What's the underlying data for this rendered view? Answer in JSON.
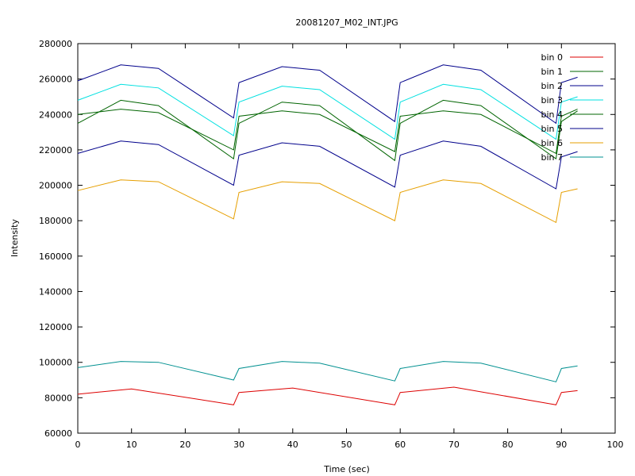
{
  "chart_data": {
    "type": "line",
    "title": "20081207_M02_INT.JPG",
    "xlabel": "Time (sec)",
    "ylabel": "Intensity",
    "xlim": [
      0,
      100
    ],
    "ylim": [
      60000,
      280000
    ],
    "xticks": [
      0,
      10,
      20,
      30,
      40,
      50,
      60,
      70,
      80,
      90,
      100
    ],
    "yticks": [
      60000,
      80000,
      100000,
      120000,
      140000,
      160000,
      180000,
      200000,
      220000,
      240000,
      260000,
      280000
    ],
    "grid": false,
    "legend_position": "top-right",
    "series": [
      {
        "name": "bin 0",
        "color": "#dd0000",
        "x": [
          0,
          10,
          29,
          30,
          40,
          59,
          60,
          70,
          89,
          90,
          93
        ],
        "y": [
          82000,
          85000,
          76000,
          83000,
          85500,
          76000,
          83000,
          86000,
          76000,
          83000,
          84000
        ]
      },
      {
        "name": "bin 1",
        "color": "#006400",
        "x": [
          0,
          8,
          15,
          29,
          30,
          38,
          45,
          59,
          60,
          68,
          75,
          89,
          90,
          93
        ],
        "y": [
          235000,
          248000,
          245000,
          215000,
          235000,
          247000,
          245000,
          214000,
          235000,
          248000,
          245000,
          215000,
          236000,
          242000
        ]
      },
      {
        "name": "bin 2",
        "color": "#00008b",
        "x": [
          0,
          8,
          15,
          29,
          30,
          38,
          45,
          59,
          60,
          68,
          75,
          89,
          90,
          93
        ],
        "y": [
          259000,
          268000,
          266000,
          238000,
          258000,
          267000,
          265000,
          236000,
          258000,
          268000,
          265000,
          235000,
          258000,
          261000
        ]
      },
      {
        "name": "bin 3",
        "color": "#00e0e0",
        "x": [
          0,
          8,
          15,
          29,
          30,
          38,
          45,
          59,
          60,
          68,
          75,
          89,
          90,
          93
        ],
        "y": [
          248000,
          257000,
          255000,
          228000,
          247000,
          256000,
          254000,
          226000,
          247000,
          257000,
          254000,
          226000,
          247000,
          250000
        ]
      },
      {
        "name": "bin 4",
        "color": "#006400",
        "x": [
          0,
          8,
          15,
          29,
          30,
          38,
          45,
          59,
          60,
          68,
          75,
          89,
          90,
          93
        ],
        "y": [
          240000,
          243000,
          241000,
          220000,
          239000,
          242000,
          240000,
          219000,
          239000,
          242000,
          240000,
          218000,
          239000,
          243000
        ]
      },
      {
        "name": "bin 5",
        "color": "#00008b",
        "x": [
          0,
          8,
          15,
          29,
          30,
          38,
          45,
          59,
          60,
          68,
          75,
          89,
          90,
          93
        ],
        "y": [
          218000,
          225000,
          223000,
          200000,
          217000,
          224000,
          222000,
          199000,
          217000,
          225000,
          222000,
          198000,
          216000,
          219000
        ]
      },
      {
        "name": "bin 6",
        "color": "#e69f00",
        "x": [
          0,
          8,
          15,
          29,
          30,
          38,
          45,
          59,
          60,
          68,
          75,
          89,
          90,
          93
        ],
        "y": [
          197000,
          203000,
          202000,
          181000,
          196000,
          202000,
          201000,
          180000,
          196000,
          203000,
          201000,
          179000,
          196000,
          198000
        ]
      },
      {
        "name": "bin 7",
        "color": "#009090",
        "x": [
          0,
          8,
          15,
          29,
          30,
          38,
          45,
          59,
          60,
          68,
          75,
          89,
          90,
          93
        ],
        "y": [
          97000,
          100500,
          100000,
          90000,
          96500,
          100500,
          99500,
          89500,
          96500,
          100500,
          99500,
          89000,
          96500,
          98000
        ]
      }
    ]
  }
}
